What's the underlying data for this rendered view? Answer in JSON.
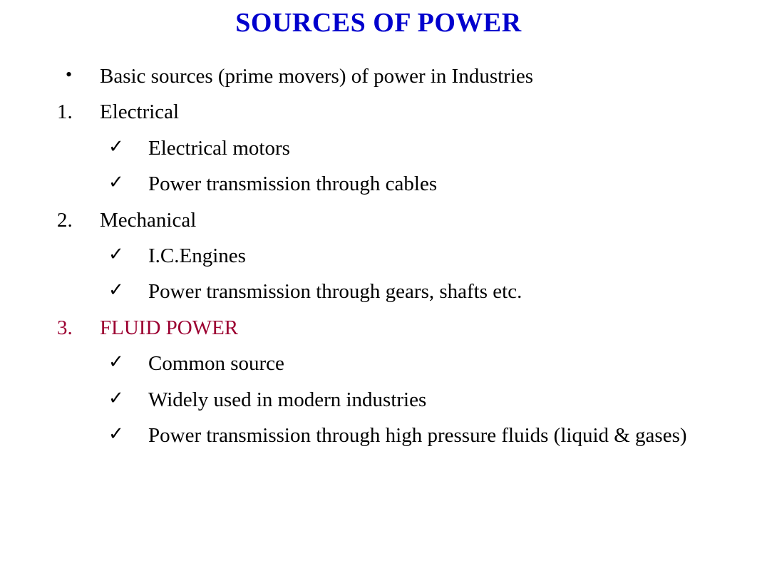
{
  "title": "SOURCES OF POWER",
  "colors": {
    "title": "#0000cd",
    "body_text": "#000000",
    "highlight": "#9c0031",
    "background": "#ffffff"
  },
  "typography": {
    "title_fontsize": 38,
    "body_fontsize": 29,
    "font_family": "Times New Roman"
  },
  "intro": {
    "bullet": "•",
    "text": "Basic sources (prime movers) of power in Industries"
  },
  "sections": [
    {
      "num": "1.",
      "label": "Electrical",
      "highlight": false,
      "items": [
        "Electrical motors",
        "Power transmission through cables"
      ]
    },
    {
      "num": "2.",
      "label": "Mechanical",
      "highlight": false,
      "items": [
        "I.C.Engines",
        "Power transmission through gears, shafts etc."
      ]
    },
    {
      "num": "3.",
      "label": "FLUID POWER",
      "highlight": true,
      "items": [
        "Common source",
        "Widely used in modern industries",
        "Power transmission through high pressure fluids (liquid & gases)"
      ]
    }
  ],
  "check_glyph": "✓"
}
